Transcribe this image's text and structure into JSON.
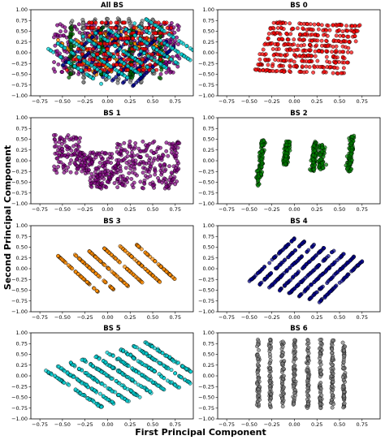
{
  "figure": {
    "xlabel": "First Principal Component",
    "ylabel": "Second Principal Component"
  },
  "chart_data": [
    {
      "type": "scatter",
      "title": "All BS",
      "xlim": [
        -0.85,
        0.95
      ],
      "ylim": [
        -1.0,
        1.0
      ],
      "xticks": [
        -0.75,
        -0.5,
        -0.25,
        0.0,
        0.25,
        0.5,
        0.75
      ],
      "xtick_labels": [
        "−0.75",
        "−0.50",
        "−0.25",
        "0.00",
        "0.25",
        "0.50",
        "0.75"
      ],
      "yticks": [
        -1.0,
        -0.75,
        -0.5,
        -0.25,
        0.0,
        0.25,
        0.5,
        0.75,
        1.0
      ],
      "ytick_labels": [
        "−1.00",
        "−0.75",
        "−0.50",
        "−0.25",
        "0.00",
        "0.25",
        "0.50",
        "0.75",
        "1.00"
      ],
      "series": [
        {
          "color": "#800080",
          "pattern": "blob",
          "points": [
            [
              -0.15,
              0.15
            ],
            [
              0.8,
              0.05
            ]
          ]
        },
        {
          "color": "#808080",
          "pattern": "vertical",
          "points": [
            [
              -0.4,
              -0.4
            ],
            [
              0.55,
              0.55
            ]
          ]
        },
        {
          "color": "#ff8c00",
          "pattern": "diagonal",
          "points": [
            [
              -0.58,
              0.35
            ],
            [
              0.2,
              -0.6
            ],
            [
              0.6,
              0.6
            ]
          ]
        },
        {
          "color": "#00008b",
          "pattern": "diagonal",
          "points": [
            [
              -0.5,
              -0.25
            ],
            [
              0.8,
              0.75
            ]
          ]
        },
        {
          "color": "#006400",
          "pattern": "vertical",
          "points": [
            [
              -0.4,
              -0.6
            ],
            [
              0.7,
              0.65
            ]
          ]
        },
        {
          "color": "#ff0000",
          "pattern": "grid",
          "points": [
            [
              -0.4,
              -0.4
            ],
            [
              0.7,
              0.7
            ]
          ]
        },
        {
          "color": "#00ced1",
          "pattern": "diagonal",
          "points": [
            [
              -0.7,
              0.2
            ],
            [
              0.8,
              0.3
            ]
          ]
        }
      ]
    },
    {
      "type": "scatter",
      "title": "BS 0",
      "xlim": [
        -0.85,
        0.95
      ],
      "ylim": [
        -1.0,
        1.0
      ],
      "series": [
        {
          "color": "#ff0000",
          "pattern": "grid",
          "rows": 10,
          "x_start": [
            -0.45,
            -0.25
          ],
          "x_end": [
            0.55,
            0.75
          ],
          "y_range": [
            -0.4,
            0.7
          ]
        }
      ]
    },
    {
      "type": "scatter",
      "title": "BS 1",
      "xlim": [
        -0.85,
        0.95
      ],
      "ylim": [
        -1.0,
        1.0
      ],
      "series": [
        {
          "color": "#800080",
          "pattern": "blob",
          "x_range": [
            -0.6,
            0.8
          ],
          "y_range": [
            -0.7,
            0.6
          ]
        }
      ]
    },
    {
      "type": "scatter",
      "title": "BS 2",
      "xlim": [
        -0.85,
        0.95
      ],
      "ylim": [
        -1.0,
        1.0
      ],
      "series": [
        {
          "color": "#008000",
          "pattern": "vertical",
          "clusters": [
            [
              -0.4,
              -0.6,
              0.5
            ],
            [
              -0.1,
              -0.1,
              0.45
            ],
            [
              0.2,
              -0.25,
              0.45
            ],
            [
              0.6,
              -0.25,
              0.6
            ]
          ]
        }
      ]
    },
    {
      "type": "scatter",
      "title": "BS 3",
      "xlim": [
        -0.85,
        0.95
      ],
      "ylim": [
        -1.0,
        1.0
      ],
      "series": [
        {
          "color": "#ff8c00",
          "pattern": "diagonal",
          "lines": 6,
          "x_range": [
            -0.55,
            0.65
          ],
          "y_range": [
            -0.55,
            0.75
          ]
        }
      ]
    },
    {
      "type": "scatter",
      "title": "BS 4",
      "xlim": [
        -0.85,
        0.95
      ],
      "ylim": [
        -1.0,
        1.0
      ],
      "series": [
        {
          "color": "#00008b",
          "pattern": "diagonal",
          "lines": 8,
          "x_range": [
            -0.5,
            0.8
          ],
          "y_range": [
            -0.3,
            0.75
          ]
        }
      ]
    },
    {
      "type": "scatter",
      "title": "BS 5",
      "xlim": [
        -0.85,
        0.95
      ],
      "ylim": [
        -1.0,
        1.0
      ],
      "series": [
        {
          "color": "#00ced1",
          "pattern": "diagonal",
          "lines": 9,
          "x_range": [
            -0.7,
            0.8
          ],
          "y_range": [
            -0.75,
            0.8
          ]
        }
      ]
    },
    {
      "type": "scatter",
      "title": "BS 6",
      "xlim": [
        -0.85,
        0.95
      ],
      "ylim": [
        -1.0,
        1.0
      ],
      "series": [
        {
          "color": "#808080",
          "pattern": "vertical",
          "columns": [
            -0.4,
            -0.27,
            -0.13,
            0.0,
            0.15,
            0.29,
            0.42,
            0.55
          ],
          "y_range": [
            -0.75,
            0.85
          ]
        }
      ]
    }
  ]
}
